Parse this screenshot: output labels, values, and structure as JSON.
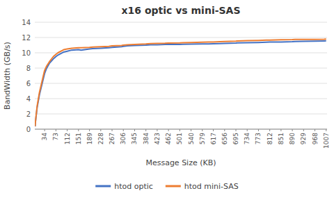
{
  "chart_data": {
    "type": "line",
    "title": "x16 optic vs mini-SAS",
    "xlabel": "Message Size (KB)",
    "ylabel": "BandWidth (GB/s)",
    "x": [
      1,
      2,
      4,
      8,
      16,
      32,
      34,
      40,
      50,
      64,
      73,
      80,
      100,
      112,
      128,
      151,
      160,
      189,
      200,
      228,
      256,
      267,
      300,
      306,
      320,
      345,
      384,
      400,
      423,
      450,
      462,
      501,
      512,
      540,
      579,
      600,
      617,
      640,
      656,
      695,
      700,
      734,
      773,
      800,
      812,
      851,
      890,
      900,
      929,
      968,
      1000,
      1007
    ],
    "series": [
      {
        "name": "htod optic",
        "color": "#4472C4",
        "values": [
          0.35,
          0.8,
          1.5,
          2.8,
          4.5,
          7.0,
          7.3,
          7.9,
          8.6,
          9.2,
          9.5,
          9.7,
          10.1,
          10.2,
          10.35,
          10.4,
          10.35,
          10.5,
          10.55,
          10.6,
          10.65,
          10.7,
          10.8,
          10.85,
          10.9,
          10.95,
          11.0,
          11.05,
          11.05,
          11.08,
          11.1,
          11.1,
          11.12,
          11.14,
          11.15,
          11.17,
          11.18,
          11.2,
          11.22,
          11.28,
          11.3,
          11.32,
          11.35,
          11.38,
          11.4,
          11.42,
          11.45,
          11.47,
          11.5,
          11.52,
          11.55,
          11.56
        ]
      },
      {
        "name": "htod mini-SAS",
        "color": "#ED7D31",
        "values": [
          0.38,
          0.85,
          1.6,
          3.0,
          4.8,
          7.4,
          7.7,
          8.2,
          8.8,
          9.5,
          9.8,
          10.0,
          10.4,
          10.5,
          10.6,
          10.65,
          10.65,
          10.7,
          10.75,
          10.8,
          10.85,
          10.9,
          10.95,
          11.0,
          11.05,
          11.1,
          11.15,
          11.2,
          11.22,
          11.25,
          11.28,
          11.3,
          11.32,
          11.35,
          11.38,
          11.4,
          11.42,
          11.45,
          11.48,
          11.52,
          11.54,
          11.58,
          11.62,
          11.65,
          11.67,
          11.7,
          11.72,
          11.74,
          11.75,
          11.76,
          11.78,
          11.8
        ]
      }
    ],
    "xlim": [
      0,
      1010
    ],
    "xticks": [
      34,
      73,
      112,
      151,
      189,
      228,
      267,
      306,
      345,
      384,
      423,
      462,
      501,
      540,
      579,
      617,
      656,
      695,
      734,
      773,
      812,
      851,
      890,
      929,
      968,
      1007
    ],
    "ylim": [
      0,
      14
    ],
    "yticks": [
      0,
      2,
      4,
      6,
      8,
      10,
      12,
      14
    ],
    "grid": true,
    "legend": "bottom"
  }
}
